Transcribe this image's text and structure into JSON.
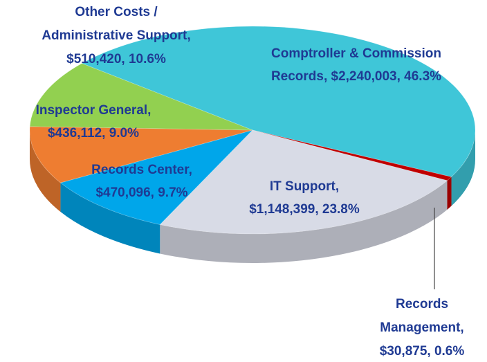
{
  "chart_data": {
    "type": "pie3d",
    "categories": [
      "Comptroller & Commission Records",
      "Records Management",
      "IT Support",
      "Records Center",
      "Inspector General",
      "Other Costs / Administrative Support"
    ],
    "values": [
      2240003,
      30875,
      1148399,
      470096,
      436112,
      510420
    ],
    "value_labels": [
      [
        "Comptroller & Commission",
        "Records, $2,240,003, 46.3%"
      ],
      [
        "Records",
        "Management,",
        "$30,875, 0.6%"
      ],
      [
        "IT Support,",
        "$1,148,399, 23.8%"
      ],
      [
        "Records Center,",
        "$470,096, 9.7%"
      ],
      [
        "Inspector General,",
        "$436,112, 9.0%"
      ],
      [
        "Other Costs /",
        "Administrative Support,",
        "$510,420, 10.6%"
      ]
    ],
    "colors": [
      "#3fc6d8",
      "#c00000",
      "#d8dbe6",
      "#00a6ea",
      "#ee7d31",
      "#92d050"
    ]
  }
}
